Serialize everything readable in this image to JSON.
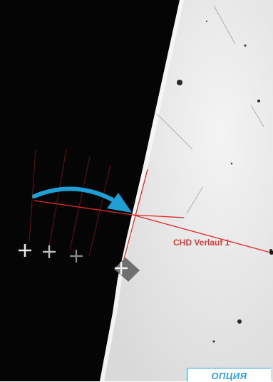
{
  "measurement": {
    "label": "CHD Verlauf 1"
  },
  "badge": {
    "label": "ОПЦИЯ"
  },
  "colors": {
    "background_dark": "#050505",
    "sample_surface": "#e4e4e4",
    "measure_line": "#e02a2a",
    "measure_label": "#d93a3a",
    "arrow": "#1e9fd6",
    "badge_accent": "#2b9fe0",
    "marker": "#e8e8e8"
  },
  "icons": {
    "arrow": "curved-arrow-icon",
    "marker": "crosshair-marker-icon",
    "active_marker": "active-marker-icon"
  }
}
